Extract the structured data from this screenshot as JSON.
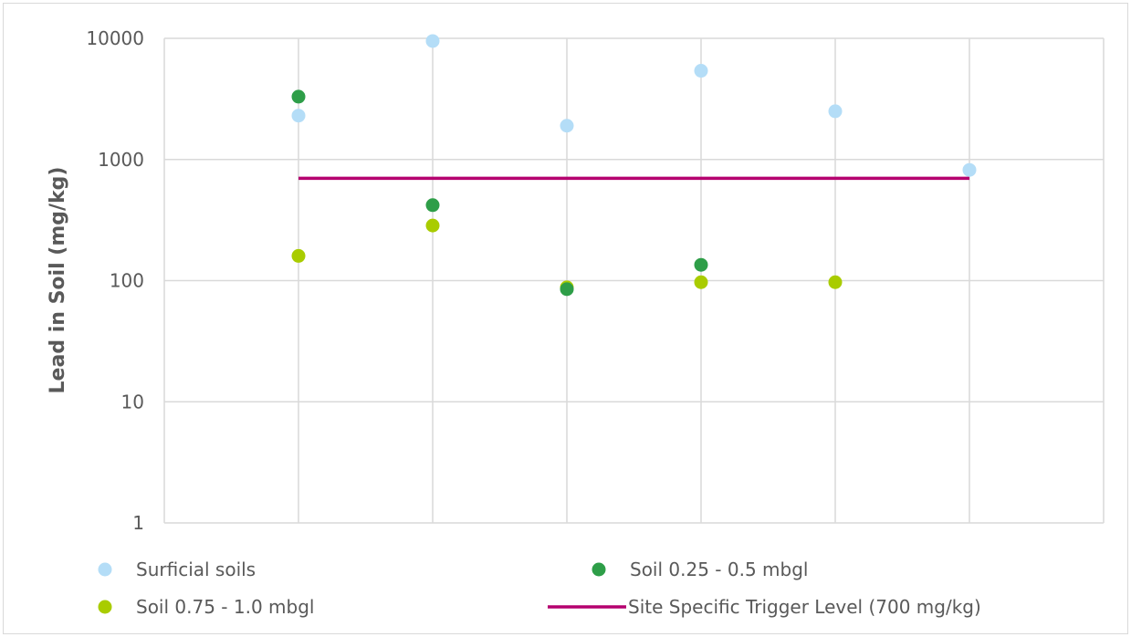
{
  "chart_data": {
    "type": "scatter",
    "title": "",
    "xlabel": "",
    "ylabel": "Lead in Soil (mg/kg)",
    "y_scale": "log",
    "ylim": [
      1,
      10000
    ],
    "y_ticks": [
      "1",
      "10",
      "100",
      "1000",
      "10000"
    ],
    "xlim": [
      0,
      7
    ],
    "grid": "vertical and horizontal",
    "legend_position": "bottom",
    "series": [
      {
        "name": "Surficial soils",
        "color": "#b4ddf7",
        "marker": "circle",
        "points": [
          [
            1,
            2300
          ],
          [
            2,
            9500
          ],
          [
            3,
            1900
          ],
          [
            4,
            5400
          ],
          [
            5,
            2500
          ],
          [
            6,
            820
          ]
        ]
      },
      {
        "name": "Soil 0.25 - 0.5 mbgl",
        "color": "#2e9e48",
        "marker": "circle",
        "points": [
          [
            1,
            3300
          ],
          [
            2,
            420
          ],
          [
            3,
            85
          ],
          [
            4,
            135
          ]
        ]
      },
      {
        "name": "Soil 0.75 - 1.0 mbgl",
        "color": "#a9cc00",
        "marker": "circle",
        "points": [
          [
            1,
            160
          ],
          [
            2,
            285
          ],
          [
            3,
            88
          ],
          [
            4,
            97
          ],
          [
            5,
            97
          ]
        ]
      },
      {
        "name": "Site Specific Trigger Level (700 mg/kg)",
        "color": "#b5006f",
        "marker": "line",
        "points": [
          [
            1,
            700
          ],
          [
            6,
            700
          ]
        ]
      }
    ]
  }
}
